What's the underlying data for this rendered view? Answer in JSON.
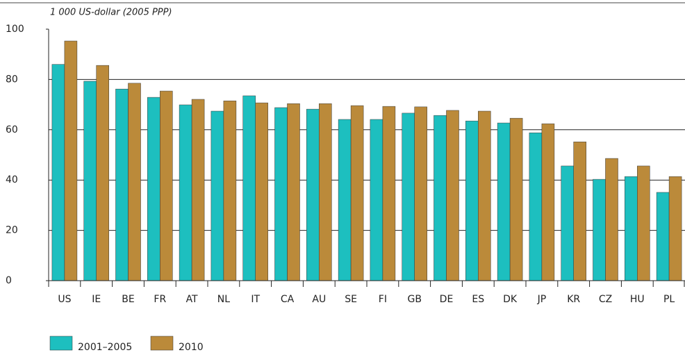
{
  "chart_data": {
    "type": "bar",
    "subtitle": "1 000 US-dollar (2005 PPP)",
    "categories": [
      "US",
      "IE",
      "BE",
      "FR",
      "AT",
      "NL",
      "IT",
      "CA",
      "AU",
      "SE",
      "FI",
      "GB",
      "DE",
      "ES",
      "DK",
      "JP",
      "KR",
      "CZ",
      "HU",
      "PL"
    ],
    "series": [
      {
        "name": "2001–2005",
        "color": "#1dbfbf",
        "values": [
          86.0,
          79.3,
          76.2,
          72.9,
          69.9,
          67.4,
          73.5,
          68.8,
          68.2,
          64.1,
          64.1,
          66.6,
          65.7,
          63.5,
          62.7,
          58.8,
          45.6,
          40.3,
          41.4,
          35.1
        ]
      },
      {
        "name": "2010",
        "color": "#bb8a3a",
        "values": [
          95.3,
          85.6,
          78.5,
          75.4,
          72.1,
          71.5,
          70.7,
          70.4,
          70.4,
          69.6,
          69.3,
          69.1,
          67.7,
          67.4,
          64.6,
          62.4,
          55.2,
          48.6,
          45.6,
          41.4
        ]
      }
    ],
    "ylim": [
      0,
      100
    ],
    "yticks": [
      0,
      20,
      40,
      60,
      80,
      100
    ],
    "grid": true
  }
}
